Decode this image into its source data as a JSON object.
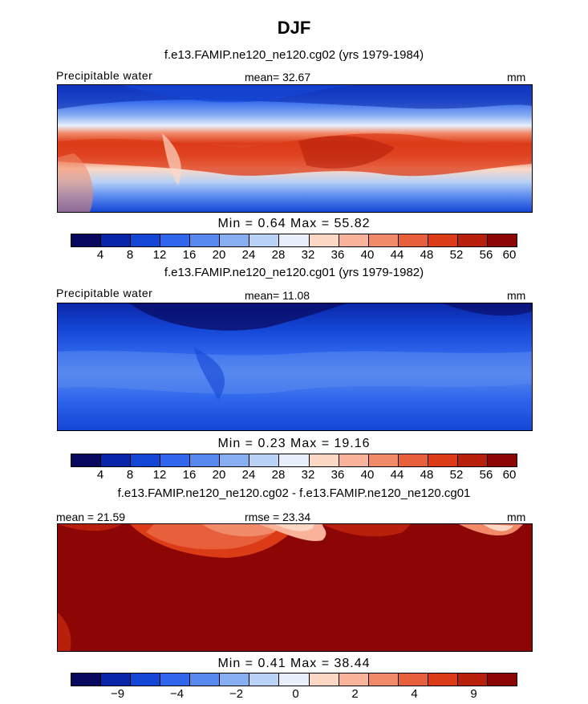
{
  "title": "DJF",
  "units": "mm",
  "colorbar_colors": [
    "#08085e",
    "#0a26a8",
    "#1446d6",
    "#2f66ec",
    "#5889ef",
    "#88aef2",
    "#b9d2f6",
    "#e8effa",
    "#fcd8c4",
    "#f8b39a",
    "#f18a68",
    "#e85f3c",
    "#dc3b18",
    "#b8200b",
    "#8c0606"
  ],
  "panels": [
    {
      "subtitle": "f.e13.FAMIP.ne120_ne120.cg02 (yrs 1979-1984)",
      "left_label": "Precipitable water",
      "center_label": "mean=  32.67",
      "right_label": "mm",
      "minmax": "Min =   0.64  Max =  55.82",
      "ticks": [
        "4",
        "8",
        "12",
        "16",
        "20",
        "24",
        "28",
        "32",
        "36",
        "40",
        "44",
        "48",
        "52",
        "56",
        "60"
      ]
    },
    {
      "subtitle": "f.e13.FAMIP.ne120_ne120.cg01 (yrs 1979-1982)",
      "left_label": "Precipitable water",
      "center_label": "mean=  11.08",
      "right_label": "mm",
      "minmax": "Min =   0.23  Max =  19.16",
      "ticks": [
        "4",
        "8",
        "12",
        "16",
        "20",
        "24",
        "28",
        "32",
        "36",
        "40",
        "44",
        "48",
        "52",
        "56",
        "60"
      ]
    },
    {
      "subtitle": "f.e13.FAMIP.ne120_ne120.cg02 - f.e13.FAMIP.ne120_ne120.cg01",
      "left_label": "mean =  21.59",
      "center_label": "rmse =  23.34",
      "right_label": "mm",
      "minmax": "Min =   0.41  Max =  38.44",
      "ticks": [
        "−9",
        "−4",
        "−2",
        "0",
        "2",
        "4",
        "9"
      ]
    }
  ]
}
